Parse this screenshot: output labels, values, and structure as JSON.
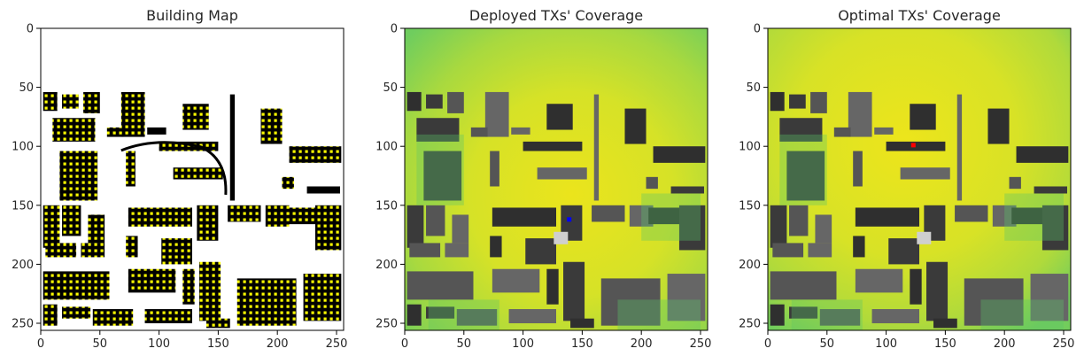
{
  "chart_data": [
    {
      "type": "heatmap",
      "title": "Building Map",
      "xlim": [
        0,
        256
      ],
      "ylim": [
        256,
        0
      ],
      "xticks": [
        0,
        50,
        100,
        150,
        200,
        250
      ],
      "yticks": [
        0,
        50,
        100,
        150,
        200,
        250
      ],
      "style": "buildings"
    },
    {
      "type": "heatmap",
      "title": "Deployed TXs' Coverage",
      "xlim": [
        0,
        256
      ],
      "ylim": [
        256,
        0
      ],
      "xticks": [
        0,
        50,
        100,
        150,
        200,
        250
      ],
      "yticks": [
        0,
        50,
        100,
        150,
        200,
        250
      ],
      "style": "coverage",
      "markers": [
        {
          "x": 139,
          "y": 162,
          "color": "#0000ff"
        }
      ]
    },
    {
      "type": "heatmap",
      "title": "Optimal TXs' Coverage",
      "xlim": [
        0,
        256
      ],
      "ylim": [
        256,
        0
      ],
      "xticks": [
        0,
        50,
        100,
        150,
        200,
        250
      ],
      "yticks": [
        0,
        50,
        100,
        150,
        200,
        250
      ],
      "style": "coverage",
      "markers": [
        {
          "x": 123,
          "y": 99,
          "color": "#ff0000"
        }
      ]
    }
  ],
  "colors": {
    "building": "#000000",
    "window": "#ffff00",
    "coverage_high": "#e8e41f",
    "coverage_mid": "#b5dc38",
    "coverage_low": "#55c46c",
    "coverage_lowest": "#2ca58c",
    "building_gray": "#666666"
  }
}
